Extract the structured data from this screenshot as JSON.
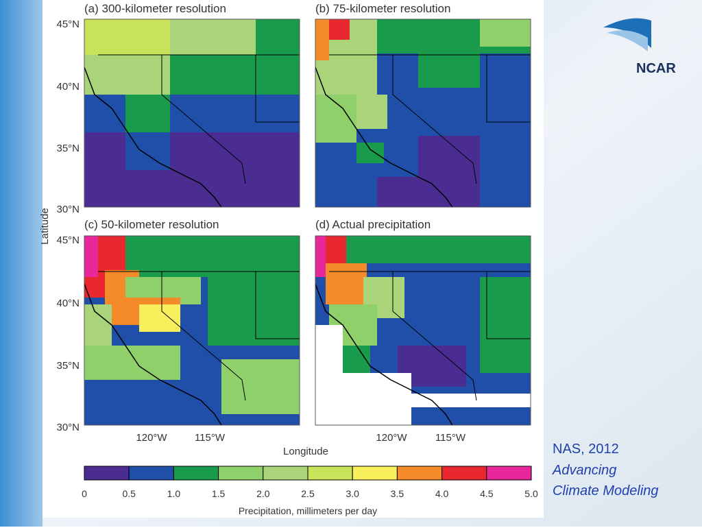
{
  "panels": [
    {
      "title": "(a) 300-kilometer resolution"
    },
    {
      "title": "(b) 75-kilometer resolution"
    },
    {
      "title": "(c) 50-kilometer resolution"
    },
    {
      "title": "(d) Actual precipitation"
    }
  ],
  "latitude_labels_top": [
    "45°N",
    "40°N",
    "35°N",
    "30°N"
  ],
  "latitude_labels_bottom": [
    "45°N",
    "40°N",
    "35°N",
    "30°N"
  ],
  "longitude_labels_left": [
    "120°W",
    "115°W"
  ],
  "longitude_labels_right": [
    "120°W",
    "115°W"
  ],
  "y_axis_label": "Latitude",
  "x_axis_label": "Longitude",
  "colorbar": {
    "ticks": [
      "0",
      "0.5",
      "1.0",
      "1.5",
      "2.0",
      "2.5",
      "3.0",
      "3.5",
      "4.0",
      "4.5",
      "5.0"
    ],
    "label": "Precipitation, millimeters per day"
  },
  "logo": "NCAR",
  "citation": {
    "line1": "NAS, 2012",
    "line2": "Advancing",
    "line3": "Climate Modeling"
  }
}
